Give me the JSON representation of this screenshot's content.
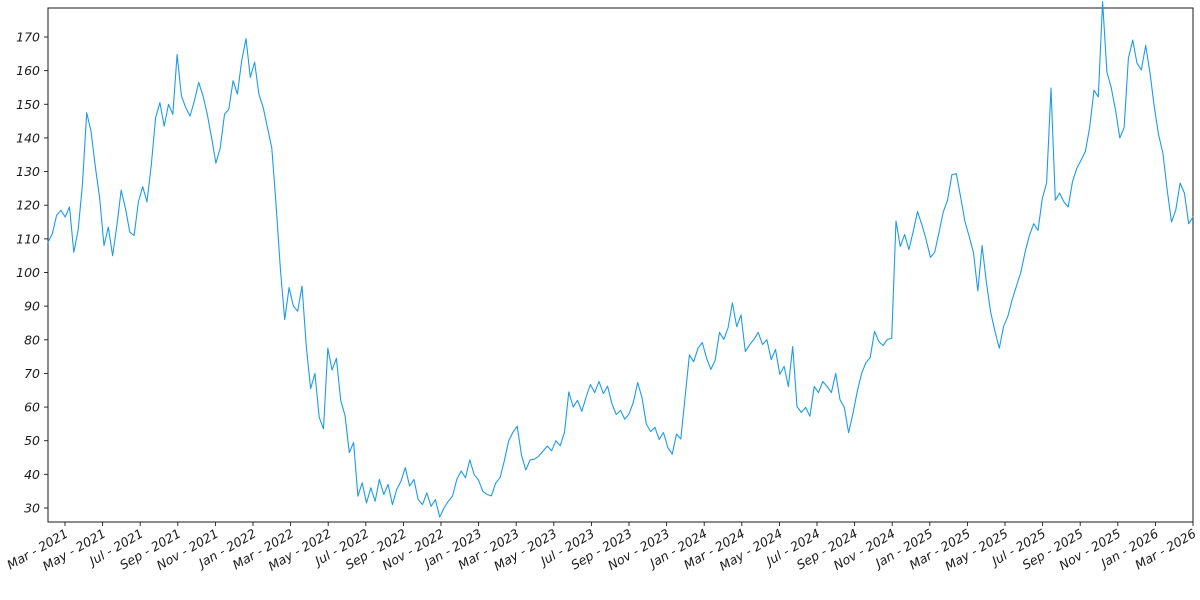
{
  "chart_data": {
    "type": "line",
    "title": "",
    "xlabel": "",
    "ylabel": "",
    "legend": null,
    "grid": false,
    "line_color": "#1c9ce8",
    "axis_color": "#1a1a1a",
    "background_color": "#ffffff",
    "y_ticks": [
      30,
      40,
      50,
      60,
      70,
      80,
      90,
      100,
      110,
      120,
      130,
      140,
      150,
      160,
      170
    ],
    "x_tick_labels": [
      "Mar - 2021",
      "May - 2021",
      "Jul - 2021",
      "Sep - 2021",
      "Nov - 2021",
      "Jan - 2022",
      "Mar - 2022",
      "May - 2022",
      "Jul - 2022",
      "Sep - 2022",
      "Nov - 2022",
      "Jan - 2023",
      "Mar - 2023",
      "May - 2023",
      "Jul - 2023",
      "Sep - 2023",
      "Nov - 2023",
      "Jan - 2024",
      "Mar - 2024",
      "May - 2024",
      "Jul - 2024",
      "Sep - 2024",
      "Nov - 2024",
      "Jan - 2025",
      "Mar - 2025",
      "May - 2025",
      "Jul - 2025",
      "Sep - 2025",
      "Nov - 2025",
      "Jan - 2026",
      "Mar - 2026"
    ],
    "x_range_labels": [
      "Mar - 2021",
      "Mar - 2026"
    ],
    "sampling_note": "approx. weekly values read from plot, series starts just before Mar 2021 tick and ends at Mar 2026",
    "values": [
      109,
      111.5,
      117,
      118.5,
      116.5,
      119.5,
      106,
      112.5,
      126,
      147.5,
      142,
      131.5,
      122,
      108,
      113.5,
      105,
      114,
      124.5,
      119,
      112,
      111,
      121,
      125.5,
      121,
      132,
      146,
      150.5,
      143.5,
      150,
      147,
      164.8,
      152.5,
      149,
      146.5,
      151,
      156.5,
      152.5,
      147,
      140,
      132.5,
      137,
      147,
      148.5,
      157,
      153,
      163,
      169.5,
      158,
      162.5,
      153,
      149,
      143,
      137,
      120,
      101,
      86,
      95.5,
      90,
      88.5,
      96,
      78,
      65.5,
      70,
      57,
      53.5,
      77.5,
      71,
      74.5,
      62,
      57.5,
      46.5,
      49.5,
      33.5,
      37.5,
      31.5,
      36,
      32,
      38.5,
      34,
      37,
      31,
      35.5,
      38,
      42,
      36.5,
      38.5,
      32.5,
      31,
      34.5,
      30.5,
      32.5,
      27.3,
      30,
      32,
      33.6,
      38.6,
      41,
      39,
      44.3,
      40,
      38.3,
      35,
      34,
      33.6,
      37.4,
      39,
      44,
      49.9,
      52.5,
      54.3,
      45.7,
      41.3,
      44.3,
      44.5,
      45.4,
      46.9,
      48.4,
      47,
      50,
      48.5,
      52.5,
      64.5,
      60,
      62,
      58.7,
      63,
      66.7,
      64.3,
      67.6,
      64,
      66.2,
      61,
      57.8,
      59,
      56.4,
      58,
      61.5,
      67.3,
      62.8,
      55,
      52.7,
      54,
      50.4,
      52.4,
      48,
      46,
      52,
      50.5,
      63,
      75.5,
      73.5,
      77.5,
      79.2,
      74.5,
      71.2,
      74,
      82.2,
      80.1,
      83.6,
      91,
      83.9,
      87.4,
      76.5,
      78.5,
      80.1,
      82.2,
      78.6,
      80,
      74.1,
      77.1,
      69.7,
      72.1,
      66.1,
      78,
      60.2,
      58.4,
      59.9,
      57.3,
      66.1,
      64.3,
      67.6,
      66.1,
      64.3,
      70,
      62.2,
      59.9,
      52.4,
      58,
      64.6,
      70,
      73.2,
      74.7,
      82.5,
      79.5,
      78.3,
      80.1,
      80.4,
      115.3,
      107.7,
      111.3,
      106.8,
      112.2,
      118.1,
      114.3,
      109.8,
      104.5,
      106,
      111.9,
      118,
      121.6,
      129.1,
      129.4,
      122.5,
      115.2,
      110.7,
      105.9,
      94.5,
      108,
      97,
      88.1,
      82.5,
      77.5,
      84,
      87,
      92,
      96,
      100,
      106,
      111,
      114.5,
      112.5,
      122,
      126.6,
      154.8,
      121.5,
      123.6,
      121,
      119.5,
      127,
      131,
      133.4,
      136,
      143.2,
      154.2,
      152.2,
      180.5,
      159.6,
      155,
      148.3,
      140,
      143,
      163.7,
      169.1,
      162.2,
      160.2,
      167.5,
      159.3,
      149.2,
      140.9,
      135.5,
      124.5,
      115,
      118.6,
      126.6,
      123.6,
      114.5,
      116.5
    ]
  }
}
